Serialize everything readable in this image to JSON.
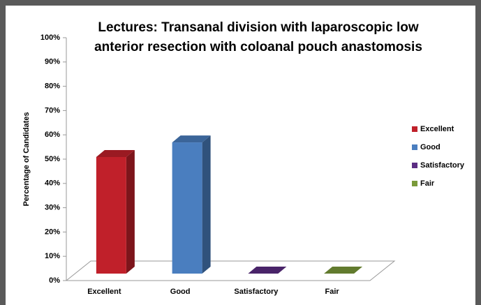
{
  "chart_data": {
    "type": "bar3d",
    "title": [
      "Lectures: Transanal division with laparoscopic low",
      "anterior resection with coloanal pouch anastomosis"
    ],
    "y_label": "Percentage of Candidates",
    "categories": [
      "Excellent",
      "Good",
      "Satisfactory",
      "Fair"
    ],
    "values": [
      48,
      54,
      0,
      0
    ],
    "colors": [
      "#c0202a",
      "#4a7ebf",
      "#5b2d83",
      "#7a9a3a"
    ],
    "legend": "right",
    "ylim": [
      0,
      100
    ],
    "yticks": [
      {
        "value": 0,
        "label": "0%"
      },
      {
        "value": 10,
        "label": "10%"
      },
      {
        "value": 20,
        "label": "20%"
      },
      {
        "value": 30,
        "label": "30%"
      },
      {
        "value": 40,
        "label": "40%"
      },
      {
        "value": 50,
        "label": "50%"
      },
      {
        "value": 60,
        "label": "60%"
      },
      {
        "value": 70,
        "label": "70%"
      },
      {
        "value": 80,
        "label": "80%"
      },
      {
        "value": 90,
        "label": "90%"
      },
      {
        "value": 100,
        "label": "100%"
      }
    ]
  }
}
